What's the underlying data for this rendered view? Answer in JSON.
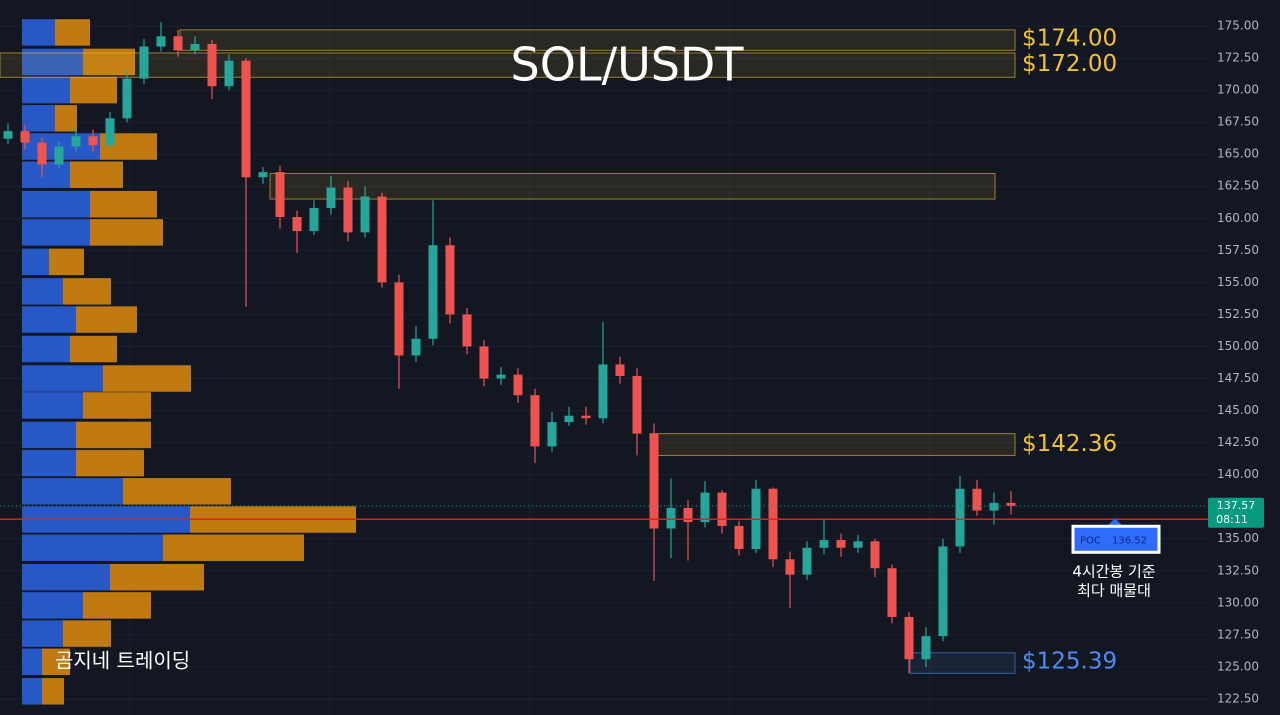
{
  "chart_data": {
    "type": "candlestick",
    "title": "SOL/USDT",
    "watermark": "곰지네 트레이딩",
    "ylim": [
      121.25,
      177.03
    ],
    "yticks": [
      {
        "value": 122.5,
        "label": "122.50"
      },
      {
        "value": 125,
        "label": "125.00"
      },
      {
        "value": 127.5,
        "label": "127.50"
      },
      {
        "value": 130,
        "label": "130.00"
      },
      {
        "value": 132.5,
        "label": "132.50"
      },
      {
        "value": 135,
        "label": "135.00"
      },
      {
        "value": 137.5,
        "label": "137.50"
      },
      {
        "value": 140,
        "label": "140.00"
      },
      {
        "value": 142.5,
        "label": "142.50"
      },
      {
        "value": 145,
        "label": "145.00"
      },
      {
        "value": 147.5,
        "label": "147.50"
      },
      {
        "value": 150,
        "label": "150.00"
      },
      {
        "value": 152.5,
        "label": "152.50"
      },
      {
        "value": 155,
        "label": "155.00"
      },
      {
        "value": 157.5,
        "label": "157.50"
      },
      {
        "value": 160,
        "label": "160.00"
      },
      {
        "value": 162.5,
        "label": "162.50"
      },
      {
        "value": 165,
        "label": "165.00"
      },
      {
        "value": 167.5,
        "label": "167.50"
      },
      {
        "value": 170,
        "label": "170.00"
      },
      {
        "value": 172.5,
        "label": "172.50"
      },
      {
        "value": 175,
        "label": "175.00"
      }
    ],
    "grid": true,
    "up_color": "#26a69a",
    "down_color": "#ef5350",
    "open": [
      166.2,
      166.8,
      165.9,
      164.2,
      165.6,
      166.4,
      165.7,
      167.8,
      170.9,
      173.4,
      174.2,
      173.1,
      173.6,
      170.3,
      172.3,
      163.2,
      163.6,
      160.1,
      159.0,
      160.8,
      162.4,
      158.9,
      161.7,
      155.0,
      149.3,
      150.6,
      157.9,
      152.5,
      150.0,
      147.5,
      147.8,
      146.2,
      142.2,
      144.1,
      144.6,
      144.4,
      148.6,
      147.7,
      143.2,
      135.8,
      137.4,
      136.3,
      138.6,
      136.0,
      134.2,
      138.9,
      133.4,
      132.2,
      134.3,
      134.9,
      134.3,
      134.8,
      132.7,
      128.9,
      125.6,
      127.4,
      134.4,
      138.9,
      137.2,
      137.8
    ],
    "high": [
      167.4,
      167.3,
      166.3,
      166.0,
      167.0,
      166.9,
      168.3,
      171.5,
      174.0,
      175.3,
      174.7,
      174.2,
      173.9,
      172.8,
      172.5,
      164.0,
      164.1,
      160.6,
      161.4,
      163.3,
      162.9,
      162.5,
      162.0,
      155.6,
      151.6,
      161.4,
      158.5,
      153.0,
      150.5,
      148.4,
      148.3,
      146.7,
      144.9,
      145.3,
      145.3,
      151.9,
      149.2,
      148.3,
      144.0,
      139.7,
      138.0,
      139.5,
      138.8,
      136.4,
      139.6,
      139.0,
      134.0,
      134.8,
      136.6,
      135.4,
      135.3,
      135.0,
      133.0,
      129.3,
      128.1,
      135.0,
      139.9,
      139.6,
      138.6,
      138.7
    ],
    "low": [
      165.8,
      165.4,
      163.2,
      163.9,
      165.2,
      165.2,
      165.5,
      167.5,
      170.5,
      173.0,
      172.6,
      172.8,
      169.3,
      170.0,
      153.1,
      162.7,
      159.2,
      157.3,
      158.7,
      160.3,
      158.2,
      158.5,
      154.6,
      146.7,
      148.8,
      150.1,
      151.8,
      149.4,
      146.9,
      147.0,
      145.6,
      140.9,
      141.8,
      143.8,
      143.9,
      144.0,
      147.1,
      141.5,
      131.7,
      133.5,
      133.3,
      135.9,
      135.4,
      133.7,
      133.9,
      132.8,
      129.6,
      131.8,
      133.8,
      133.6,
      133.9,
      132.0,
      128.4,
      124.5,
      125.0,
      127.0,
      133.9,
      136.8,
      136.1,
      136.9
    ],
    "close": [
      166.8,
      165.9,
      164.2,
      165.6,
      166.4,
      165.7,
      167.8,
      170.9,
      173.4,
      174.2,
      173.1,
      173.6,
      170.3,
      172.3,
      163.2,
      163.6,
      160.1,
      159.0,
      160.8,
      162.4,
      158.9,
      161.7,
      155.0,
      149.3,
      150.6,
      157.9,
      152.5,
      150.0,
      147.5,
      147.8,
      146.2,
      142.2,
      144.1,
      144.6,
      144.4,
      148.6,
      147.7,
      143.2,
      135.8,
      137.4,
      136.3,
      138.6,
      136.0,
      134.2,
      138.9,
      133.4,
      132.2,
      134.3,
      134.9,
      134.3,
      134.8,
      132.7,
      128.9,
      125.6,
      127.4,
      134.4,
      138.9,
      137.2,
      137.8,
      137.57
    ],
    "volume_profile": {
      "price": [
        174.5,
        172.2,
        170.0,
        167.8,
        165.6,
        163.4,
        161.1,
        158.9,
        156.6,
        154.3,
        152.1,
        149.8,
        147.5,
        145.4,
        143.1,
        140.9,
        138.7,
        136.5,
        134.3,
        132.0,
        129.8,
        127.6,
        125.4,
        123.1
      ],
      "buy": [
        33,
        61,
        48,
        33,
        78,
        48,
        68,
        68,
        27,
        41,
        54,
        48,
        81,
        61,
        54,
        54,
        101,
        168,
        141,
        88,
        61,
        41,
        20,
        20
      ],
      "sell": [
        35,
        52,
        47,
        22,
        57,
        53,
        67,
        73,
        35,
        48,
        61,
        47,
        88,
        68,
        75,
        68,
        108,
        166,
        141,
        94,
        68,
        48,
        28,
        22
      ],
      "buy_color": "#2b5fd8",
      "sell_color": "#d4850f"
    },
    "zones": [
      {
        "label": "$174.00",
        "value": 174,
        "low": 173.1,
        "high": 174.7,
        "color": "#f2c230"
      },
      {
        "label": "$172.00",
        "value": 172,
        "low": 171.0,
        "high": 172.9,
        "color": "#f2c230"
      },
      {
        "low": 161.5,
        "high": 163.5,
        "color": "#f2c230"
      },
      {
        "label": "$142.36",
        "value": 142.36,
        "low": 141.5,
        "high": 143.2,
        "color": "#f2c230"
      },
      {
        "label": "$125.39",
        "value": 125.39,
        "low": 124.5,
        "high": 126.1,
        "color": "#4d8df0"
      }
    ],
    "last": {
      "value": 137.57,
      "countdown": "08:11",
      "color": "#089981"
    },
    "poc": {
      "label": "POC",
      "value": 136.52,
      "line_color": "#e0201f"
    },
    "annotation": [
      "4시간봉 기준",
      "최다 매물대"
    ]
  }
}
